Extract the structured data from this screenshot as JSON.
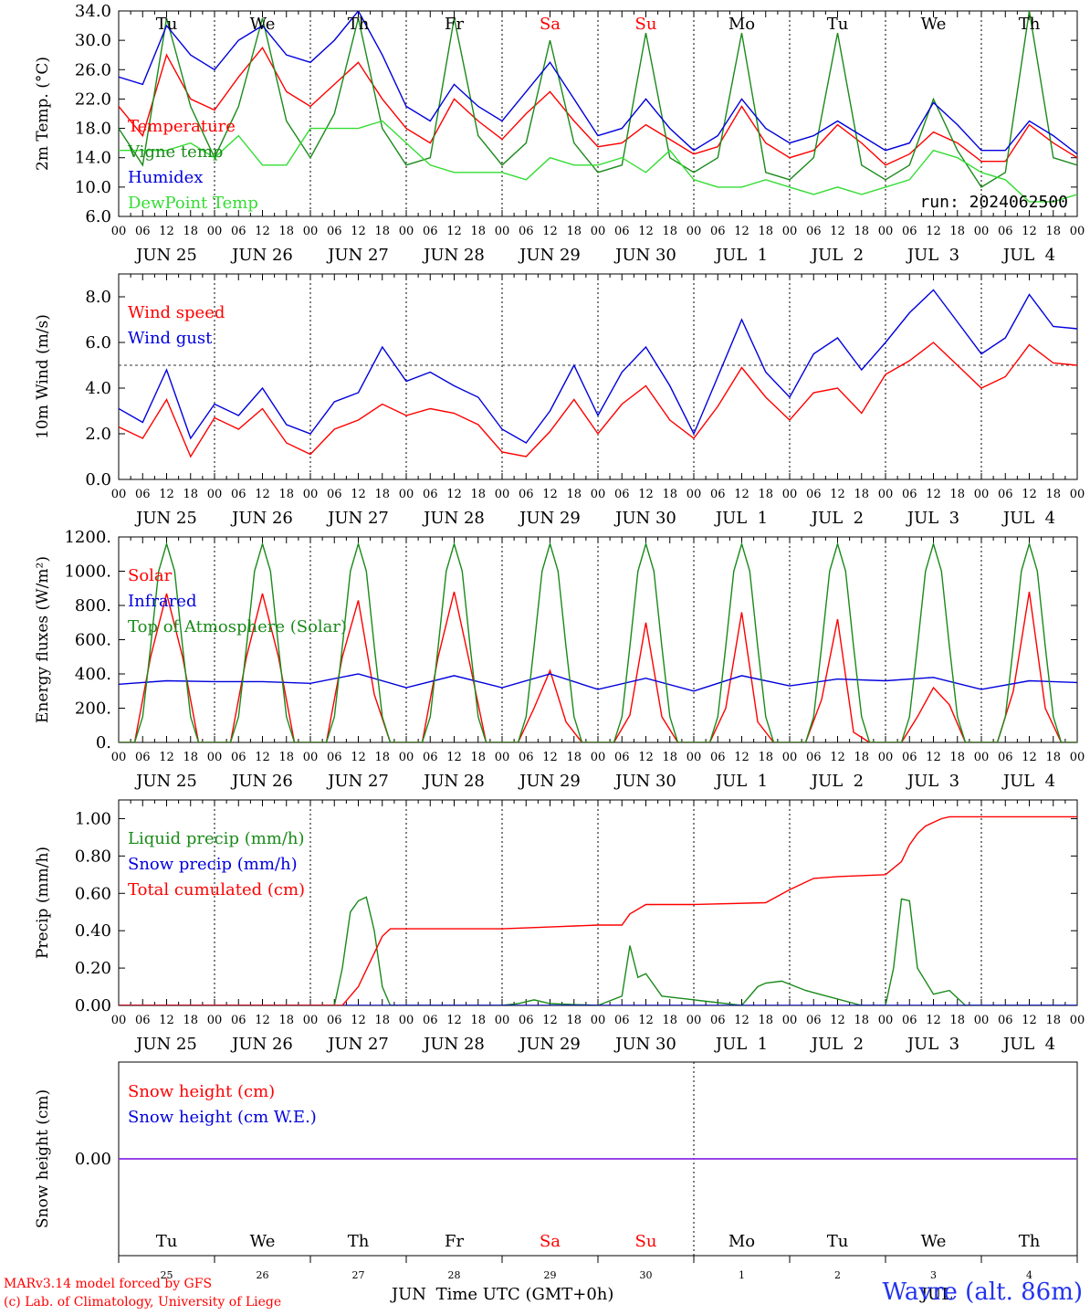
{
  "meta": {
    "model_credit": "MARv3.14 model forced by GFS",
    "lab_credit": "(c) Lab. of Climatology, University of Liege",
    "location": "Wavre (alt. 86m)",
    "run_label": "run: 2024062500",
    "time_axis_label": "Time UTC (GMT+0h)",
    "month_left": "JUN",
    "month_right": "JUL"
  },
  "colors": {
    "red": "#ff0000",
    "green": "#1a8a1a",
    "light_green": "#33dd33",
    "blue": "#0000dd",
    "purple": "#8a2be2",
    "weekend": "#ff0000"
  },
  "days": {
    "weekday_labels": [
      "Tu",
      "We",
      "Th",
      "Fr",
      "Sa",
      "Su",
      "Mo",
      "Tu",
      "We",
      "Th"
    ],
    "weekend_index": [
      4,
      5
    ],
    "date_labels": [
      "JUN 25",
      "JUN 26",
      "JUN 27",
      "JUN 28",
      "JUN 29",
      "JUN 30",
      "JUL  1",
      "JUL  2",
      "JUL  3",
      "JUL  4"
    ],
    "day_numbers": [
      "25",
      "26",
      "27",
      "28",
      "29",
      "30",
      "1",
      "2",
      "3",
      "4"
    ],
    "hour_ticks": [
      "00",
      "06",
      "12",
      "18"
    ],
    "final_hour": "00"
  },
  "chart_data": [
    {
      "type": "line",
      "ylabel": "2m Temp. (°C)",
      "ylim": [
        6,
        34
      ],
      "yticks": [
        "6.0",
        "10.0",
        "14.0",
        "18.0",
        "22.0",
        "26.0",
        "30.0",
        "34.0"
      ],
      "x_unit": "hours since JUN 25 00 UTC",
      "legend": [
        "Temperature",
        "Vigne temp",
        "Humidex",
        "DewPoint Temp"
      ],
      "series": [
        {
          "name": "Temperature",
          "color": "red",
          "x": [
            0,
            6,
            12,
            18,
            24,
            30,
            36,
            42,
            48,
            54,
            60,
            66,
            72,
            78,
            84,
            90,
            96,
            102,
            108,
            114,
            120,
            126,
            132,
            138,
            144,
            150,
            156,
            162,
            168,
            174,
            180,
            186,
            192,
            198,
            204,
            210,
            216,
            222,
            228,
            234,
            240
          ],
          "y": [
            21,
            17,
            28,
            22,
            20.5,
            25,
            29,
            23,
            21,
            24,
            27,
            22,
            18,
            16,
            22,
            19,
            16.5,
            20,
            23,
            19,
            15.5,
            16,
            18.5,
            16.5,
            14.5,
            15.5,
            21,
            16,
            14,
            15,
            18.5,
            16,
            13,
            14.5,
            17.5,
            16,
            13.5,
            13.5,
            18.5,
            16,
            14
          ]
        },
        {
          "name": "Vigne temp",
          "color": "green",
          "x": [
            0,
            6,
            12,
            18,
            24,
            30,
            36,
            42,
            48,
            54,
            60,
            66,
            72,
            78,
            84,
            90,
            96,
            102,
            108,
            114,
            120,
            126,
            132,
            138,
            144,
            150,
            156,
            162,
            168,
            174,
            180,
            186,
            192,
            198,
            204,
            210,
            216,
            222,
            228,
            234,
            240
          ],
          "y": [
            18,
            13,
            33,
            21,
            14,
            21,
            33,
            19,
            14,
            20,
            33,
            18,
            13,
            14,
            33,
            17,
            13,
            16,
            30,
            16,
            12,
            13,
            31,
            14,
            12,
            14,
            31,
            12,
            11,
            14,
            31,
            13,
            11,
            13,
            22,
            15,
            10,
            12,
            34,
            14,
            13
          ]
        },
        {
          "name": "Humidex",
          "color": "blue",
          "x": [
            0,
            6,
            12,
            18,
            24,
            30,
            36,
            42,
            48,
            54,
            60,
            66,
            72,
            78,
            84,
            90,
            96,
            102,
            108,
            114,
            120,
            126,
            132,
            138,
            144,
            150,
            156,
            162,
            168,
            174,
            180,
            186,
            192,
            198,
            204,
            210,
            216,
            222,
            228,
            234,
            240
          ],
          "y": [
            25,
            24,
            32,
            28,
            26,
            30,
            32,
            28,
            27,
            30,
            34,
            28,
            21,
            19,
            24,
            21,
            19,
            23,
            27,
            22,
            17,
            18,
            22,
            18,
            15,
            17,
            22,
            18,
            16,
            17,
            19,
            17,
            15,
            16,
            21.5,
            18.5,
            15,
            15,
            19,
            17,
            14.5
          ]
        },
        {
          "name": "DewPoint Temp",
          "color": "light_green",
          "x": [
            0,
            6,
            12,
            18,
            24,
            30,
            36,
            42,
            48,
            54,
            60,
            66,
            72,
            78,
            84,
            90,
            96,
            102,
            108,
            114,
            120,
            126,
            132,
            138,
            144,
            150,
            156,
            162,
            168,
            174,
            180,
            186,
            192,
            198,
            204,
            210,
            216,
            222,
            228,
            234,
            240
          ],
          "y": [
            15,
            15,
            15,
            16,
            14,
            17,
            13,
            13,
            18,
            18,
            18,
            19,
            16,
            13,
            12,
            12,
            12,
            11,
            14,
            13,
            13,
            14,
            12,
            15,
            11,
            10,
            10,
            11,
            10,
            9,
            10,
            9,
            10,
            11,
            15,
            14,
            12,
            11,
            8,
            8,
            9
          ]
        }
      ]
    },
    {
      "type": "line",
      "ylabel": "10m Wind (m/s)",
      "ylim": [
        0,
        9
      ],
      "yticks": [
        "0.0",
        "2.0",
        "4.0",
        "6.0",
        "8.0"
      ],
      "reference_line": 5,
      "legend": [
        "Wind speed",
        "Wind gust"
      ],
      "series": [
        {
          "name": "Wind speed",
          "color": "red",
          "x": [
            0,
            6,
            12,
            18,
            24,
            30,
            36,
            42,
            48,
            54,
            60,
            66,
            72,
            78,
            84,
            90,
            96,
            102,
            108,
            114,
            120,
            126,
            132,
            138,
            144,
            150,
            156,
            162,
            168,
            174,
            180,
            186,
            192,
            198,
            204,
            210,
            216,
            222,
            228,
            234,
            240
          ],
          "y": [
            2.3,
            1.8,
            3.5,
            1.0,
            2.7,
            2.2,
            3.1,
            1.6,
            1.1,
            2.2,
            2.6,
            3.3,
            2.8,
            3.1,
            2.9,
            2.4,
            1.2,
            1.0,
            2.1,
            3.5,
            2.0,
            3.3,
            4.1,
            2.6,
            1.8,
            3.2,
            4.9,
            3.6,
            2.6,
            3.8,
            4.0,
            2.9,
            4.6,
            5.2,
            6.0,
            5.0,
            4.0,
            4.5,
            5.9,
            5.1,
            5.0
          ]
        },
        {
          "name": "Wind gust",
          "color": "blue",
          "x": [
            0,
            6,
            12,
            18,
            24,
            30,
            36,
            42,
            48,
            54,
            60,
            66,
            72,
            78,
            84,
            90,
            96,
            102,
            108,
            114,
            120,
            126,
            132,
            138,
            144,
            150,
            156,
            162,
            168,
            174,
            180,
            186,
            192,
            198,
            204,
            210,
            216,
            222,
            228,
            234,
            240
          ],
          "y": [
            3.1,
            2.5,
            4.8,
            1.8,
            3.3,
            2.8,
            4.0,
            2.4,
            2.0,
            3.4,
            3.8,
            5.8,
            4.3,
            4.7,
            4.1,
            3.6,
            2.2,
            1.6,
            3.0,
            5.0,
            2.8,
            4.7,
            5.8,
            4.1,
            2.0,
            4.5,
            7.0,
            4.7,
            3.6,
            5.5,
            6.2,
            4.8,
            6.0,
            7.3,
            8.3,
            6.9,
            5.5,
            6.2,
            8.1,
            6.7,
            6.6
          ]
        }
      ]
    },
    {
      "type": "line",
      "ylabel": "Energy fluxes (W/m²)",
      "ylim": [
        0,
        1200
      ],
      "yticks": [
        "0.",
        "200.",
        "400.",
        "600.",
        "800.",
        "1000.",
        "1200."
      ],
      "legend": [
        "Solar",
        "Infrared",
        "Top of Atmosphere (Solar)"
      ],
      "series": [
        {
          "name": "Solar",
          "color": "red",
          "x": [
            0,
            4,
            8,
            12,
            16,
            20,
            24,
            28,
            32,
            36,
            40,
            44,
            48,
            52,
            56,
            60,
            64,
            68,
            72,
            76,
            80,
            84,
            88,
            92,
            96,
            100,
            104,
            108,
            112,
            116,
            120,
            124,
            128,
            132,
            136,
            140,
            144,
            148,
            152,
            156,
            160,
            164,
            168,
            172,
            176,
            180,
            184,
            188,
            192,
            196,
            200,
            204,
            208,
            212,
            216,
            220,
            224,
            228,
            232,
            236,
            240
          ],
          "y": [
            0,
            0,
            500,
            870,
            500,
            0,
            0,
            0,
            500,
            870,
            500,
            0,
            0,
            0,
            500,
            830,
            280,
            0,
            0,
            0,
            500,
            880,
            450,
            0,
            0,
            0,
            200,
            420,
            120,
            0,
            0,
            0,
            160,
            700,
            150,
            0,
            0,
            0,
            200,
            760,
            120,
            0,
            0,
            0,
            250,
            720,
            60,
            0,
            0,
            0,
            150,
            320,
            220,
            0,
            0,
            0,
            300,
            880,
            200,
            0,
            0
          ]
        },
        {
          "name": "Infrared",
          "color": "blue",
          "x": [
            0,
            12,
            24,
            36,
            48,
            60,
            72,
            84,
            96,
            108,
            120,
            132,
            144,
            156,
            168,
            180,
            192,
            204,
            216,
            228,
            240
          ],
          "y": [
            340,
            360,
            355,
            355,
            345,
            400,
            320,
            390,
            320,
            400,
            310,
            375,
            300,
            390,
            330,
            370,
            360,
            380,
            310,
            360,
            350
          ]
        },
        {
          "name": "Top of Atmosphere (Solar)",
          "color": "green",
          "x": [
            0,
            2,
            4,
            6,
            8,
            10,
            12,
            14,
            16,
            18,
            20,
            22,
            24
          ],
          "y": [
            0,
            0,
            0,
            150,
            560,
            1000,
            1160,
            1000,
            560,
            150,
            0,
            0,
            0
          ],
          "repeat_daily": true
        }
      ]
    },
    {
      "type": "line",
      "ylabel": "Precip (mm/h)",
      "ylim": [
        0,
        1.1
      ],
      "yticks": [
        "0.00",
        "0.20",
        "0.40",
        "0.60",
        "0.80",
        "1.00"
      ],
      "legend": [
        "Liquid precip (mm/h)",
        "Snow precip (mm/h)",
        "Total cumulated (cm)"
      ],
      "series": [
        {
          "name": "Liquid precip (mm/h)",
          "color": "green",
          "x": [
            0,
            54,
            56,
            58,
            60,
            62,
            64,
            66,
            68,
            96,
            100,
            104,
            108,
            120,
            126,
            128,
            130,
            132,
            136,
            156,
            160,
            162,
            166,
            172,
            186,
            192,
            194,
            196,
            198,
            200,
            204,
            208,
            212,
            240
          ],
          "y": [
            0,
            0,
            0.2,
            0.5,
            0.56,
            0.58,
            0.4,
            0.1,
            0,
            0,
            0.01,
            0.03,
            0.01,
            0,
            0.05,
            0.32,
            0.15,
            0.17,
            0.05,
            0,
            0.1,
            0.12,
            0.13,
            0.08,
            0,
            0,
            0.2,
            0.57,
            0.56,
            0.2,
            0.06,
            0.08,
            0,
            0
          ]
        },
        {
          "name": "Snow precip (mm/h)",
          "color": "blue",
          "x": [
            0,
            240
          ],
          "y": [
            0,
            0
          ]
        },
        {
          "name": "Total cumulated (cm)",
          "color": "red",
          "x": [
            0,
            56,
            60,
            64,
            66,
            68,
            72,
            96,
            108,
            120,
            126,
            128,
            132,
            144,
            162,
            168,
            174,
            180,
            192,
            196,
            198,
            200,
            202,
            204,
            206,
            208,
            240
          ],
          "y": [
            0,
            0,
            0.1,
            0.28,
            0.37,
            0.41,
            0.41,
            0.41,
            0.42,
            0.43,
            0.43,
            0.49,
            0.54,
            0.54,
            0.55,
            0.62,
            0.68,
            0.69,
            0.7,
            0.77,
            0.86,
            0.92,
            0.96,
            0.98,
            1.0,
            1.01,
            1.01
          ]
        }
      ]
    },
    {
      "type": "line",
      "ylabel": "Snow height (cm)",
      "ylim": [
        -1,
        1
      ],
      "yticks": [
        "0.00"
      ],
      "legend": [
        "Snow height (cm)",
        "Snow height (cm W.E.)"
      ],
      "series": [
        {
          "name": "Snow height (cm)",
          "color": "red",
          "x": [
            0,
            240
          ],
          "y": [
            0,
            0
          ]
        },
        {
          "name": "Snow height (cm W.E.)",
          "color": "blue",
          "x": [
            0,
            240
          ],
          "y": [
            0,
            0
          ]
        }
      ]
    }
  ]
}
